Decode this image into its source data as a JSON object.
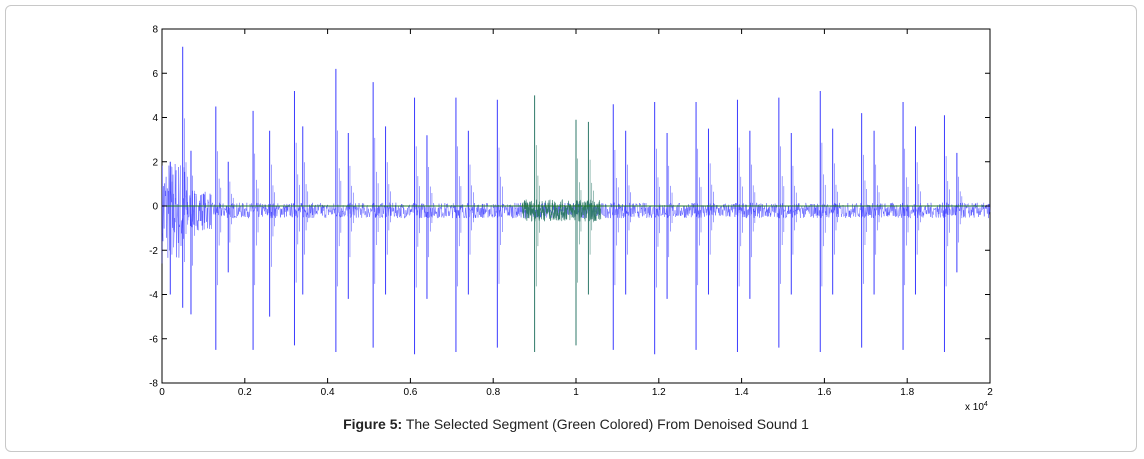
{
  "figure": {
    "label": "Figure 5:",
    "caption": "The Selected Segment (Green Colored) From Denoised Sound 1"
  },
  "chart_data": {
    "type": "line",
    "xlim": [
      0,
      2
    ],
    "ylim": [
      -8,
      8
    ],
    "x_ticks": [
      0,
      0.2,
      0.4,
      0.6,
      0.8,
      1,
      1.2,
      1.4,
      1.6,
      1.8,
      2
    ],
    "x_tick_labels": [
      "0",
      "0.2",
      "0.4",
      "0.6",
      "0.8",
      "1",
      "1.2",
      "1.4",
      "1.6",
      "1.8",
      "2"
    ],
    "y_ticks": [
      -8,
      -6,
      -4,
      -2,
      0,
      2,
      4,
      6,
      8
    ],
    "y_tick_labels": [
      "-8",
      "-6",
      "-4",
      "-2",
      "0",
      "2",
      "4",
      "6",
      "8"
    ],
    "x_multiplier": "x 10",
    "x_multiplier_exp": "4",
    "grid": false,
    "colors": {
      "signal": "#3b3bff",
      "segment": "#2f7a6a",
      "zero_line": "#1f7a1f"
    },
    "selected_segment_x": [
      0.87,
      1.06
    ],
    "spikes": [
      {
        "x": 0.02,
        "up": 2.0,
        "down": -4.0
      },
      {
        "x": 0.05,
        "up": 7.2,
        "down": -4.6
      },
      {
        "x": 0.07,
        "up": 2.5,
        "down": -4.9
      },
      {
        "x": 0.13,
        "up": 4.5,
        "down": -6.5
      },
      {
        "x": 0.16,
        "up": 2.0,
        "down": -3.0
      },
      {
        "x": 0.22,
        "up": 4.3,
        "down": -6.5
      },
      {
        "x": 0.26,
        "up": 3.4,
        "down": -5.0
      },
      {
        "x": 0.32,
        "up": 5.2,
        "down": -6.3
      },
      {
        "x": 0.34,
        "up": 3.6,
        "down": -4.0
      },
      {
        "x": 0.42,
        "up": 6.2,
        "down": -6.6
      },
      {
        "x": 0.45,
        "up": 3.3,
        "down": -4.2
      },
      {
        "x": 0.51,
        "up": 5.6,
        "down": -6.4
      },
      {
        "x": 0.54,
        "up": 3.6,
        "down": -4.0
      },
      {
        "x": 0.61,
        "up": 4.9,
        "down": -6.7
      },
      {
        "x": 0.64,
        "up": 3.2,
        "down": -4.2
      },
      {
        "x": 0.71,
        "up": 4.9,
        "down": -6.6
      },
      {
        "x": 0.74,
        "up": 3.4,
        "down": -4.0
      },
      {
        "x": 0.81,
        "up": 4.8,
        "down": -6.4
      },
      {
        "x": 0.9,
        "up": 5.0,
        "down": -6.6
      },
      {
        "x": 1.0,
        "up": 3.9,
        "down": -6.3
      },
      {
        "x": 1.03,
        "up": 3.8,
        "down": -4.0
      },
      {
        "x": 1.09,
        "up": 4.6,
        "down": -6.5
      },
      {
        "x": 1.12,
        "up": 3.4,
        "down": -4.0
      },
      {
        "x": 1.19,
        "up": 4.7,
        "down": -6.7
      },
      {
        "x": 1.22,
        "up": 3.3,
        "down": -4.2
      },
      {
        "x": 1.29,
        "up": 4.7,
        "down": -6.5
      },
      {
        "x": 1.32,
        "up": 3.5,
        "down": -4.0
      },
      {
        "x": 1.39,
        "up": 4.8,
        "down": -6.6
      },
      {
        "x": 1.42,
        "up": 3.4,
        "down": -4.2
      },
      {
        "x": 1.49,
        "up": 4.9,
        "down": -6.4
      },
      {
        "x": 1.52,
        "up": 3.3,
        "down": -4.0
      },
      {
        "x": 1.59,
        "up": 5.2,
        "down": -6.6
      },
      {
        "x": 1.62,
        "up": 3.5,
        "down": -4.0
      },
      {
        "x": 1.69,
        "up": 4.2,
        "down": -6.4
      },
      {
        "x": 1.72,
        "up": 3.4,
        "down": -4.0
      },
      {
        "x": 1.79,
        "up": 4.7,
        "down": -6.5
      },
      {
        "x": 1.82,
        "up": 3.6,
        "down": -4.0
      },
      {
        "x": 1.89,
        "up": 4.1,
        "down": -6.6
      },
      {
        "x": 1.92,
        "up": 2.4,
        "down": -3.0
      }
    ]
  }
}
